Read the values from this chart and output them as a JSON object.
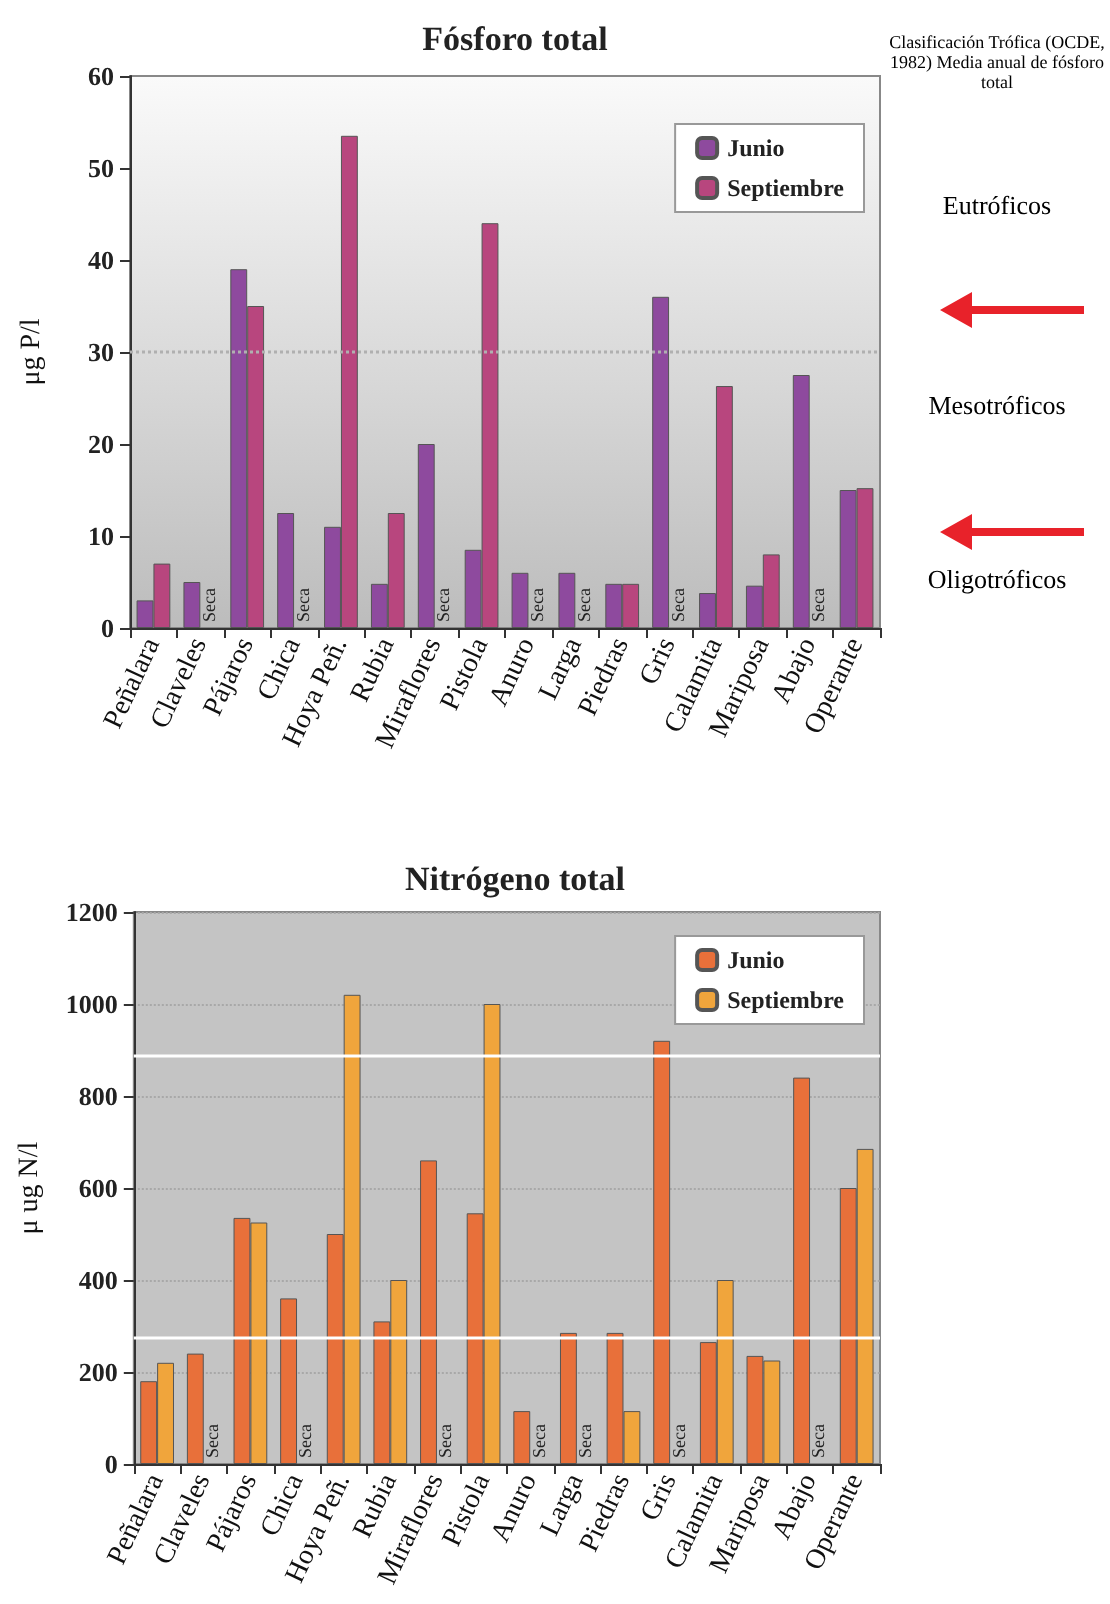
{
  "chart_data": [
    {
      "type": "bar",
      "title": "Fósforo total",
      "ylabel": "μg P/l",
      "categories": [
        "Peñalara",
        "Claveles",
        "Pájaros",
        "Chica",
        "Hoya Peñ.",
        "Rubia",
        "Miraflores",
        "Pistola",
        "Anuro",
        "Larga",
        "Piedras",
        "Gris",
        "Calamita",
        "Mariposa",
        "Abajo",
        "Operante"
      ],
      "series": [
        {
          "name": "Junio",
          "color": "#8e4a9e",
          "values": [
            3,
            5,
            39,
            12.5,
            11,
            4.8,
            20,
            8.5,
            6,
            6,
            4.8,
            36,
            3.8,
            4.6,
            27.5,
            15
          ]
        },
        {
          "name": "Septiembre",
          "color": "#b8467e",
          "values": [
            7,
            null,
            35,
            null,
            53.5,
            12.5,
            null,
            44,
            null,
            null,
            4.8,
            null,
            26.3,
            8,
            null,
            15.2
          ],
          "value_labels": [
            null,
            "Seca",
            null,
            "Seca",
            null,
            null,
            "Seca",
            null,
            "Seca",
            "Seca",
            null,
            "Seca",
            null,
            null,
            "Seca",
            null
          ]
        }
      ],
      "ylim": [
        0,
        60
      ],
      "yticks": [
        0,
        10,
        20,
        30,
        40,
        50,
        60
      ],
      "grid": false,
      "legend": "top right",
      "ref_lines": [
        {
          "axis": "y",
          "value": 30,
          "color": "#b0b0b0",
          "line_style": "dotted"
        }
      ],
      "annotations": [
        "Clasificación Trófica (OCDE, 1982) Media anual de fósforo total",
        "Eutróficos",
        "Mesotróficos",
        "Oligotróficos"
      ]
    },
    {
      "type": "bar",
      "title": "Nitrógeno total",
      "ylabel": "μ ug N/l",
      "categories": [
        "Peñalara",
        "Claveles",
        "Pájaros",
        "Chica",
        "Hoya Peñ.",
        "Rubia",
        "Miraflores",
        "Pistola",
        "Anuro",
        "Larga",
        "Piedras",
        "Gris",
        "Calamita",
        "Mariposa",
        "Abajo",
        "Operante"
      ],
      "series": [
        {
          "name": "Junio",
          "color": "#e8703a",
          "values": [
            180,
            240,
            535,
            360,
            500,
            310,
            660,
            545,
            115,
            285,
            285,
            920,
            265,
            235,
            840,
            600
          ]
        },
        {
          "name": "Septiembre",
          "color": "#f0a53c",
          "values": [
            220,
            null,
            525,
            null,
            1020,
            400,
            null,
            1000,
            null,
            null,
            115,
            null,
            400,
            225,
            null,
            685
          ],
          "value_labels": [
            null,
            "Seca",
            null,
            "Seca",
            null,
            null,
            "Seca",
            null,
            "Seca",
            "Seca",
            null,
            "Seca",
            null,
            null,
            "Seca",
            null
          ]
        }
      ],
      "ylim": [
        0,
        1200
      ],
      "yticks": [
        0,
        200,
        400,
        600,
        800,
        1000,
        1200
      ],
      "grid": "y",
      "legend": "top right",
      "ref_lines": [
        {
          "axis": "y",
          "value": 890,
          "color": "#ffffff",
          "line_style": "solid"
        },
        {
          "axis": "y",
          "value": 275,
          "color": "#ffffff",
          "line_style": "solid"
        }
      ]
    }
  ]
}
